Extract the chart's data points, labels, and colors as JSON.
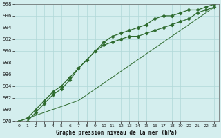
{
  "title": "Graphe pression niveau de la mer (hPa)",
  "x_min": 0,
  "x_max": 23,
  "y_min": 978,
  "y_max": 998,
  "background_color": "#d4eeee",
  "grid_color": "#b0d8d8",
  "line_color": "#2d6a2d",
  "series1_with_markers": [
    978,
    978,
    979.5,
    981,
    982.5,
    983.5,
    985,
    987,
    988.5,
    990,
    991,
    991.5,
    992,
    992.5,
    992.5,
    993,
    993.5,
    994,
    994.5,
    995,
    995.5,
    996.5,
    997,
    997.5
  ],
  "series2_with_markers": [
    978,
    978.5,
    980,
    981.5,
    983,
    984,
    985.5,
    987,
    988.5,
    990,
    991.5,
    992.5,
    993,
    993.5,
    994,
    994.5,
    995.5,
    996,
    996,
    996.5,
    997,
    997,
    997.5,
    998
  ],
  "series3_smooth": [
    978,
    978.5,
    979,
    979.5,
    980,
    980.5,
    981,
    981.5,
    982.5,
    983.5,
    984.5,
    985.5,
    986.5,
    987.5,
    988.5,
    989.5,
    990.5,
    991.5,
    992.5,
    993.5,
    994.5,
    995.5,
    996.5,
    997.5
  ],
  "x_ticks": [
    0,
    1,
    2,
    3,
    4,
    5,
    6,
    7,
    8,
    9,
    10,
    11,
    12,
    13,
    14,
    15,
    16,
    17,
    18,
    19,
    20,
    21,
    22,
    23
  ],
  "y_ticks": [
    978,
    980,
    982,
    984,
    986,
    988,
    990,
    992,
    994,
    996,
    998
  ]
}
